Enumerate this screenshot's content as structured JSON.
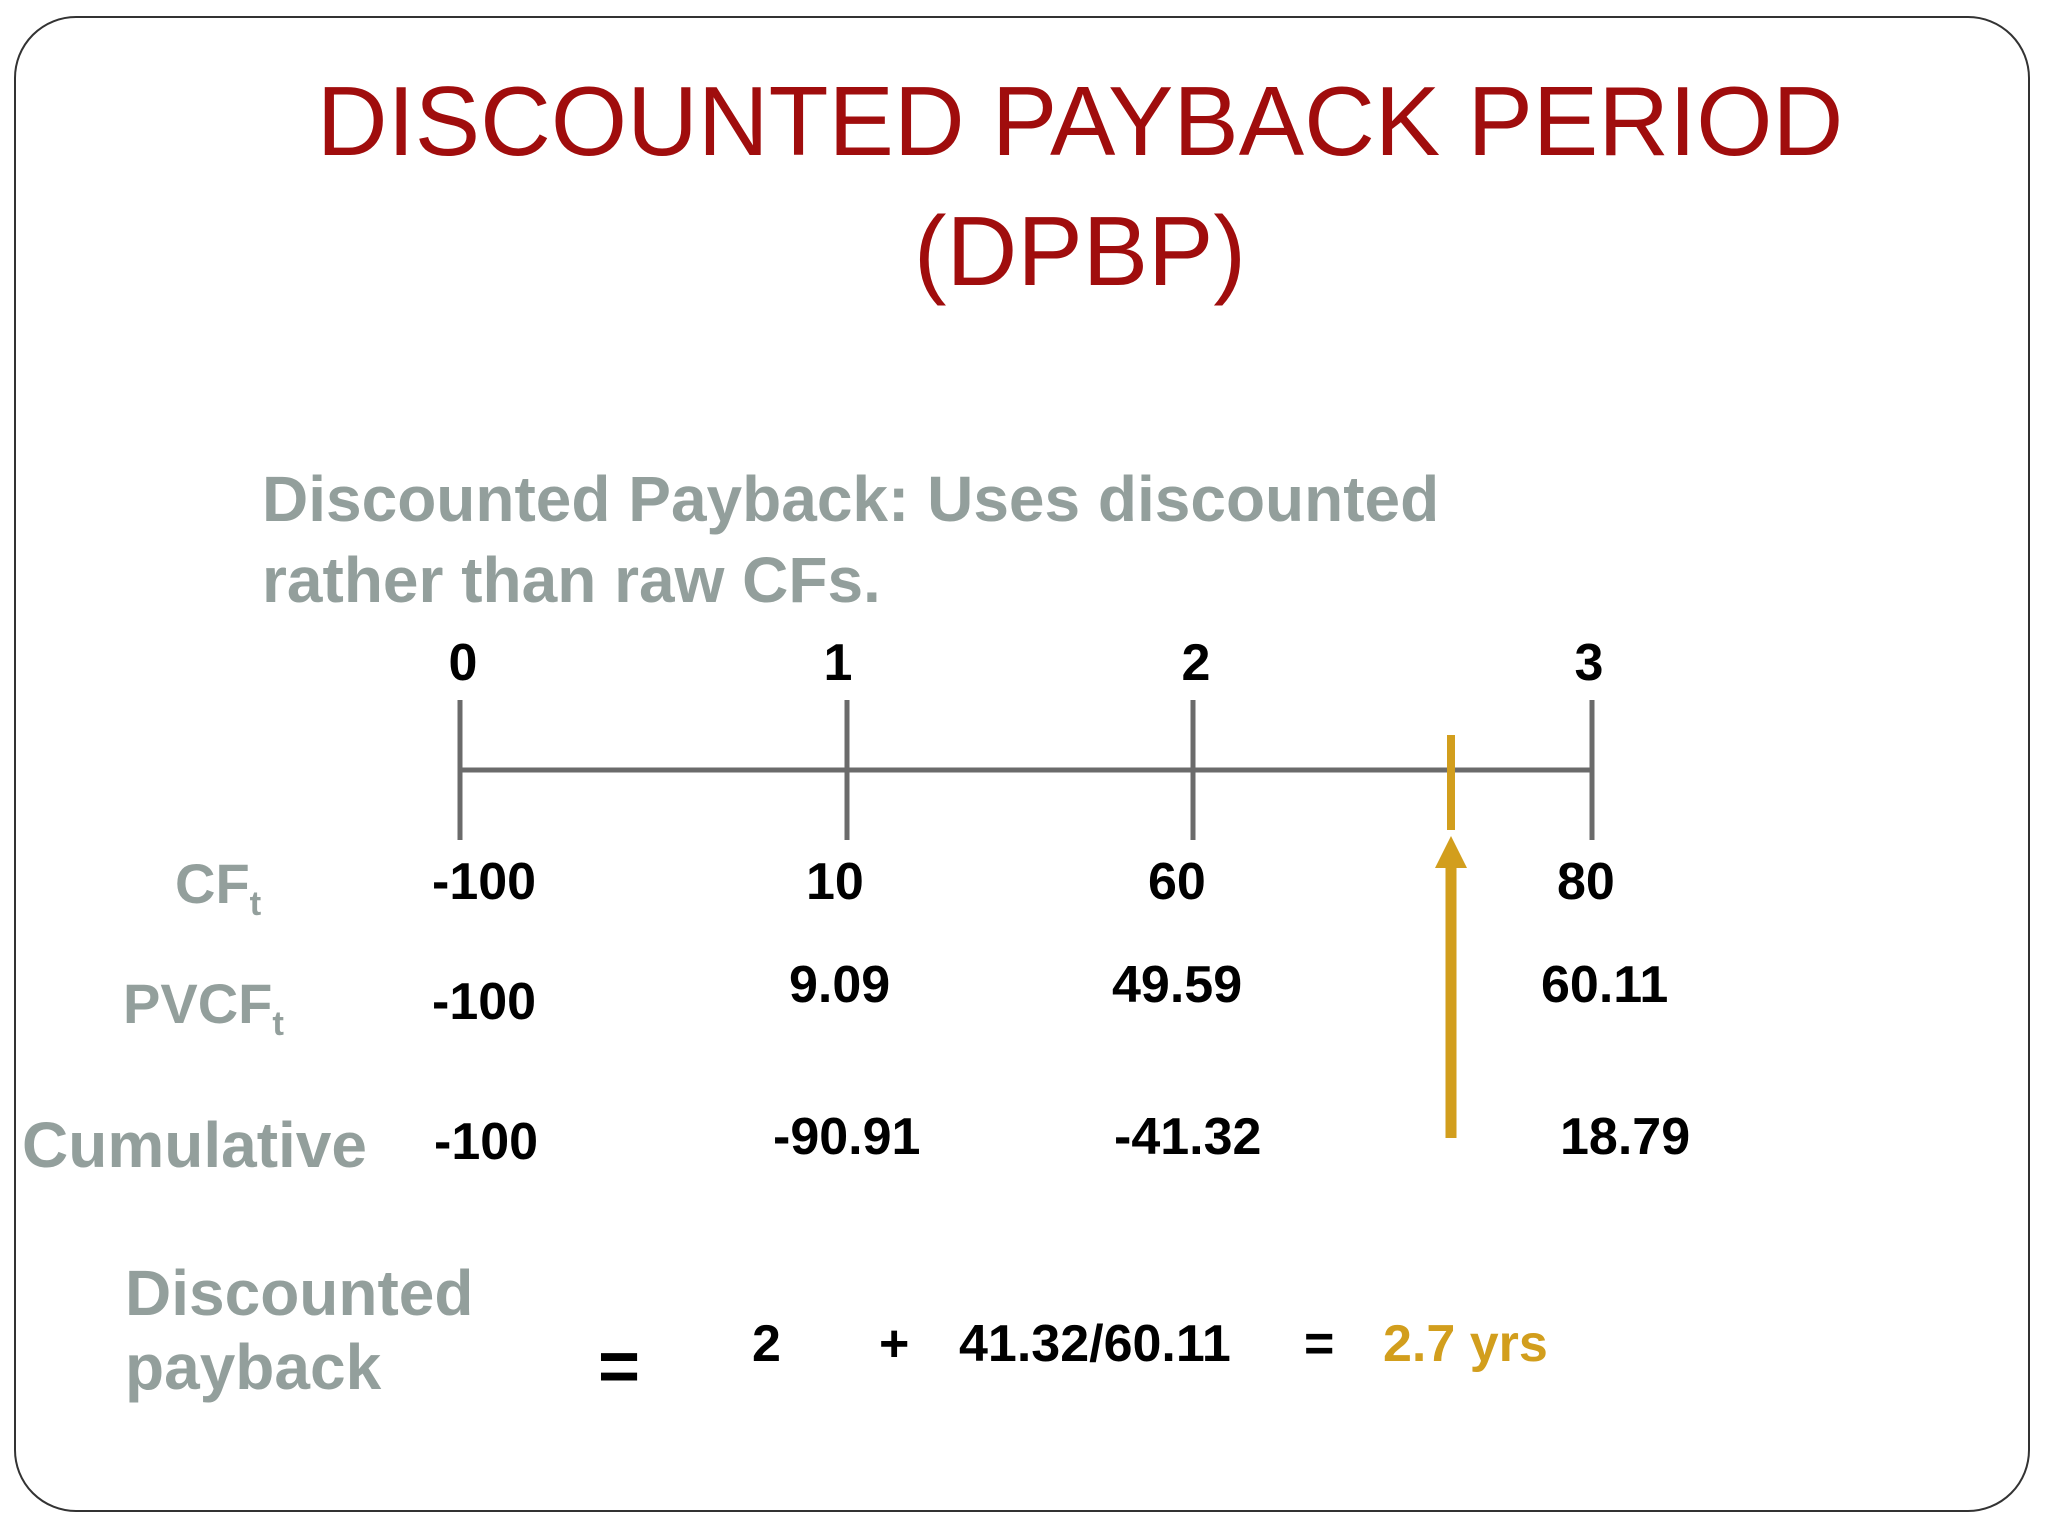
{
  "title": {
    "line1": "DISCOUNTED PAYBACK PERIOD",
    "line2": "(DPBP)"
  },
  "description": {
    "line1": "Discounted Payback:  Uses discounted",
    "line2": "rather than raw CFs."
  },
  "timeline": {
    "periods": [
      "0",
      "1",
      "2",
      "3"
    ],
    "payback_marker": 2.7,
    "colors": {
      "line": "#6b6b6b",
      "marker": "#d29e1d"
    }
  },
  "rows": {
    "cf": {
      "label": "CF",
      "sub": "t",
      "values": [
        "-100",
        "10",
        "60",
        "80"
      ]
    },
    "pvcf": {
      "label": "PVCF",
      "sub": "t",
      "values": [
        "-100",
        "9.09",
        "49.59",
        "60.11"
      ]
    },
    "cumulative": {
      "label": "Cumulative",
      "values": [
        "-100",
        "-90.91",
        "-41.32",
        "18.79"
      ]
    }
  },
  "result": {
    "label_line1": "Discounted",
    "label_line2": "payback",
    "eq1": "=",
    "term1": "2",
    "plus": "+",
    "term2": "41.32/60.11",
    "eq2": "=",
    "answer": "2.7 yrs"
  }
}
